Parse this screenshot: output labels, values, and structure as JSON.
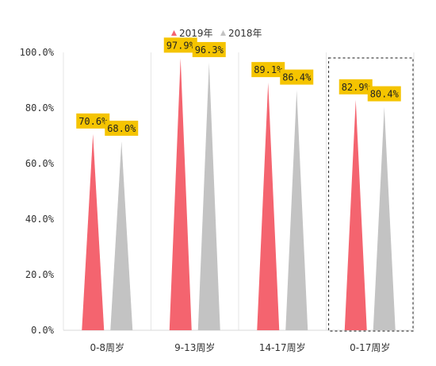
{
  "colors": {
    "series_2019": "#f4646f",
    "series_2018": "#c3c3c3",
    "label_bg": "#f5c400",
    "gridline": "#e6e6e6",
    "axis": "#d9d9d9",
    "highlight_border": "#444444"
  },
  "chart_data": {
    "type": "bar",
    "bar_shape": "triangle",
    "title": "",
    "xlabel": "",
    "ylabel": "",
    "ylim": [
      0,
      100
    ],
    "yticks": [
      "0.0%",
      "20.0%",
      "40.0%",
      "60.0%",
      "80.0%",
      "100.0%"
    ],
    "ytick_values": [
      0,
      20,
      40,
      60,
      80,
      100
    ],
    "categories": [
      "0-8周岁",
      "9-13周岁",
      "14-17周岁",
      "0-17周岁"
    ],
    "series": [
      {
        "name": "2019年",
        "values": [
          70.6,
          97.9,
          89.1,
          82.9
        ],
        "labels": [
          "70.6%",
          "97.9%",
          "89.1%",
          "82.9%"
        ]
      },
      {
        "name": "2018年",
        "values": [
          68.0,
          96.3,
          86.4,
          80.4
        ],
        "labels": [
          "68.0%",
          "96.3%",
          "86.4%",
          "80.4%"
        ]
      }
    ],
    "legend_position": "top",
    "grid": "vertical",
    "highlighted_category": "0-17周岁"
  }
}
